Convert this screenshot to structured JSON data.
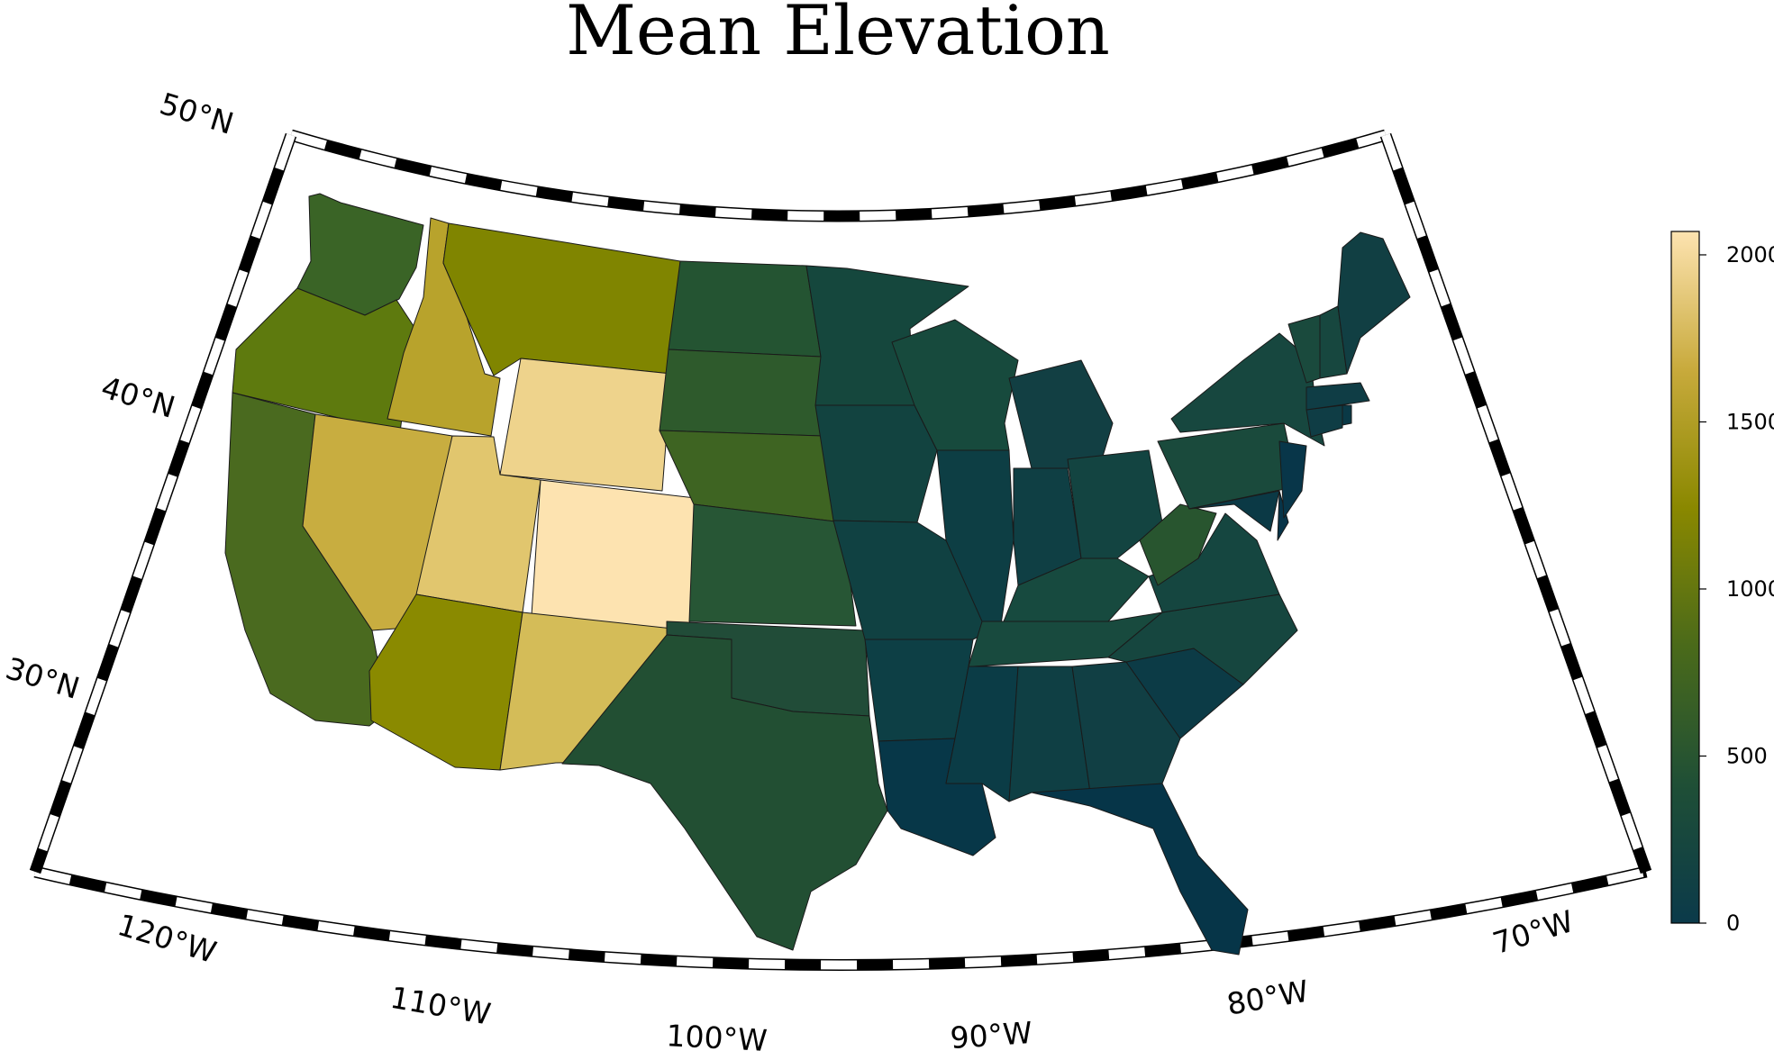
{
  "title": "Mean Elevation",
  "latitude_labels": [
    "50°N",
    "40°N",
    "30°N"
  ],
  "longitude_labels": [
    "120°W",
    "110°W",
    "100°W",
    "90°W",
    "80°W",
    "70°W"
  ],
  "colorbar": {
    "ticks": [
      "0",
      "500",
      "1000",
      "1500",
      "2000"
    ],
    "range": [
      0,
      2070
    ],
    "stops": [
      "#0b3a4a",
      "#1f4f36",
      "#4a6a1a",
      "#8a8800",
      "#c8aa3c",
      "#fde3b0"
    ]
  },
  "states": {
    "washington": "#3a6426",
    "oregon": "#5e7a0e",
    "california": "#4a6a1f",
    "idaho": "#b8a32c",
    "nevada": "#c8ad40",
    "montana": "#808500",
    "wyoming": "#eed38c",
    "utah": "#e1c66e",
    "colorado": "#fde3b0",
    "arizona": "#8a8a00",
    "new_mexico": "#d4bc58",
    "north_dakota": "#245432",
    "south_dakota": "#2e5a2c",
    "nebraska": "#3e6422",
    "kansas": "#275635",
    "oklahoma": "#214c38",
    "texas": "#224f33",
    "minnesota": "#15473d",
    "iowa": "#124340",
    "missouri": "#104142",
    "arkansas": "#0d3f45",
    "louisiana": "#073748",
    "wisconsin": "#174a3d",
    "illinois": "#0d3e44",
    "michigan": "#123f43",
    "indiana": "#0f3f44",
    "ohio": "#134441",
    "kentucky": "#174a3f",
    "tennessee": "#184a3e",
    "mississippi": "#0b3c46",
    "alabama": "#0f3f44",
    "georgia": "#113f44",
    "florida": "#063548",
    "south_carolina": "#0c3b46",
    "north_carolina": "#16463f",
    "virginia": "#154640",
    "west_virginia": "#28552f",
    "pennsylvania": "#1a4a3c",
    "new_york": "#17473f",
    "maryland": "#0b3945",
    "delaware": "#073448",
    "new_jersey": "#083649",
    "connecticut": "#0f3d45",
    "rhode_island": "#0a3946",
    "massachusetts": "#0f3d45",
    "vermont": "#1a4a3d",
    "new_hampshire": "#17473f",
    "maine": "#113f43"
  }
}
